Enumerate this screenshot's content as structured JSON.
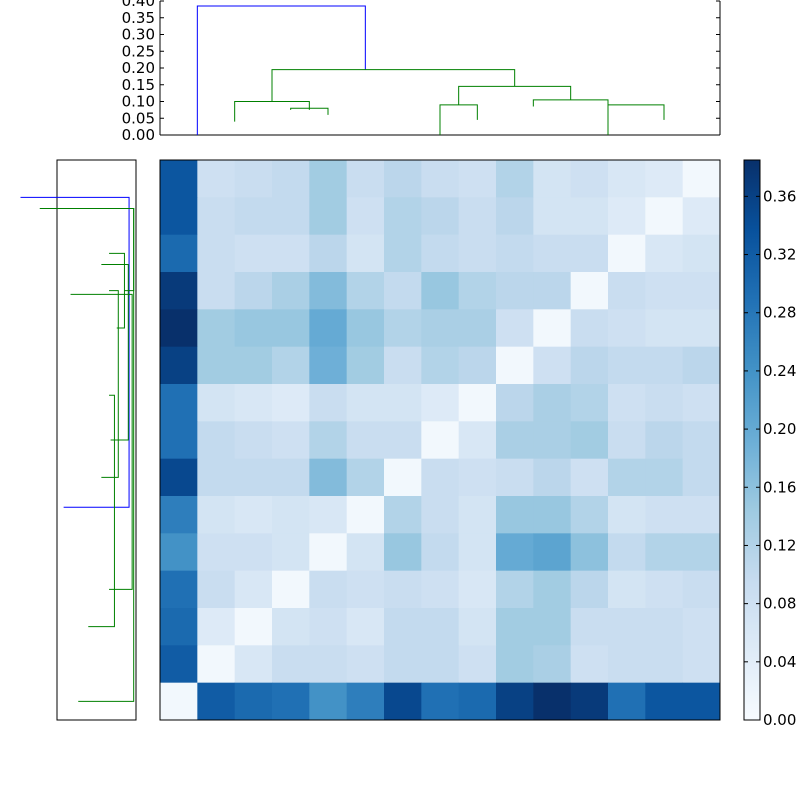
{
  "chart_data": [
    {
      "type": "dendrogram",
      "orientation": "top",
      "ylim": [
        0,
        0.4
      ],
      "yticks": [
        "0.00",
        "0.05",
        "0.10",
        "0.15",
        "0.20",
        "0.25",
        "0.30",
        "0.35",
        "0.40"
      ],
      "link_colors": {
        "root": "#0000ff",
        "cluster": "#008000"
      },
      "links": [
        {
          "x": [
            1,
            1,
            5.5,
            5.5
          ],
          "y": [
            0,
            0.385,
            0.385,
            0.195
          ],
          "color": "root"
        },
        {
          "x": [
            3,
            3,
            9.5,
            9.5
          ],
          "y": [
            0.1,
            0.195,
            0.195,
            0.145
          ],
          "color": "cluster"
        },
        {
          "x": [
            2,
            2,
            4,
            4
          ],
          "y": [
            0.04,
            0.1,
            0.1,
            0.075
          ],
          "color": "cluster"
        },
        {
          "x": [
            3.5,
            3.5,
            4.5,
            4.5
          ],
          "y": [
            0.075,
            0.08,
            0.08,
            0.06
          ],
          "color": "cluster"
        },
        {
          "x": [
            8,
            8,
            11,
            11
          ],
          "y": [
            0.09,
            0.145,
            0.145,
            0.105
          ],
          "color": "cluster"
        },
        {
          "x": [
            7.5,
            7.5,
            8.5,
            8.5
          ],
          "y": [
            0,
            0.09,
            0.09,
            0.045
          ],
          "color": "cluster"
        },
        {
          "x": [
            10,
            10,
            12,
            12
          ],
          "y": [
            0.085,
            0.105,
            0.105,
            0.09
          ],
          "color": "cluster"
        },
        {
          "x": [
            12,
            12,
            13.5,
            13.5
          ],
          "y": [
            0,
            0.09,
            0.09,
            0.045
          ],
          "color": "cluster"
        }
      ]
    },
    {
      "type": "dendrogram",
      "orientation": "left",
      "link_colors": {
        "root": "#0000ff",
        "cluster": "#008000"
      },
      "links": [
        {
          "x": [
            15,
            0.9,
            0.9,
            9.4
          ],
          "y": [
            1,
            1,
            9.3,
            9.3
          ],
          "color": "root"
        },
        {
          "x": [
            3.5,
            2.8,
            2.8,
            6.2
          ],
          "y": [
            6.3,
            6.3,
            12.5,
            12.5
          ],
          "color": "cluster"
        },
        {
          "x": [
            3.5,
            2.3,
            2.3,
            4.5
          ],
          "y": [
            3.5,
            3.5,
            8.5,
            8.5
          ],
          "color": "cluster"
        },
        {
          "x": [
            3.5,
            1.5,
            1.5,
            2.5
          ],
          "y": [
            2.5,
            2.5,
            4.5,
            4.5
          ],
          "color": "cluster"
        },
        {
          "x": [
            2.5,
            0.3,
            0.3,
            1.5
          ],
          "y": [
            1.3,
            1.3,
            3.5,
            3.5
          ],
          "color": "cluster"
        },
        {
          "x": [
            4.5,
            1.0,
            1.0,
            3.3
          ],
          "y": [
            2.8,
            2.8,
            7.5,
            7.5
          ],
          "color": "cluster"
        },
        {
          "x": [
            8.5,
            0.5,
            0.5,
            3.5
          ],
          "y": [
            3.6,
            3.6,
            11.5,
            11.5
          ],
          "color": "cluster"
        },
        {
          "x": [
            12.5,
            0.3,
            0.3,
            7.5
          ],
          "y": [
            1.3,
            1.3,
            14.5,
            14.5
          ],
          "color": "cluster"
        }
      ]
    },
    {
      "type": "heatmap",
      "rows": 15,
      "cols": 15,
      "values": [
        [
          0.33,
          0.08,
          0.09,
          0.1,
          0.14,
          0.09,
          0.11,
          0.09,
          0.08,
          0.12,
          0.07,
          0.08,
          0.06,
          0.05,
          0.01
        ],
        [
          0.33,
          0.09,
          0.1,
          0.1,
          0.14,
          0.08,
          0.12,
          0.11,
          0.09,
          0.11,
          0.07,
          0.07,
          0.05,
          0.01,
          0.05
        ],
        [
          0.3,
          0.09,
          0.08,
          0.08,
          0.11,
          0.07,
          0.12,
          0.1,
          0.09,
          0.1,
          0.09,
          0.09,
          0.01,
          0.06,
          0.07
        ],
        [
          0.37,
          0.09,
          0.11,
          0.13,
          0.17,
          0.12,
          0.1,
          0.15,
          0.12,
          0.11,
          0.11,
          0.01,
          0.09,
          0.08,
          0.08
        ],
        [
          0.39,
          0.14,
          0.15,
          0.15,
          0.2,
          0.15,
          0.12,
          0.13,
          0.13,
          0.08,
          0.01,
          0.09,
          0.08,
          0.07,
          0.07
        ],
        [
          0.36,
          0.14,
          0.14,
          0.12,
          0.19,
          0.14,
          0.09,
          0.12,
          0.11,
          0.01,
          0.08,
          0.11,
          0.1,
          0.1,
          0.11
        ],
        [
          0.29,
          0.07,
          0.06,
          0.05,
          0.09,
          0.07,
          0.07,
          0.05,
          0.01,
          0.11,
          0.13,
          0.12,
          0.08,
          0.09,
          0.08
        ],
        [
          0.29,
          0.1,
          0.09,
          0.08,
          0.12,
          0.09,
          0.09,
          0.01,
          0.06,
          0.13,
          0.13,
          0.14,
          0.09,
          0.11,
          0.1
        ],
        [
          0.35,
          0.1,
          0.1,
          0.1,
          0.17,
          0.12,
          0.01,
          0.09,
          0.08,
          0.09,
          0.11,
          0.08,
          0.12,
          0.12,
          0.1
        ],
        [
          0.27,
          0.07,
          0.06,
          0.07,
          0.06,
          0.01,
          0.12,
          0.09,
          0.07,
          0.15,
          0.15,
          0.12,
          0.07,
          0.08,
          0.08
        ],
        [
          0.24,
          0.08,
          0.08,
          0.07,
          0.01,
          0.07,
          0.15,
          0.1,
          0.07,
          0.2,
          0.21,
          0.16,
          0.1,
          0.12,
          0.12
        ],
        [
          0.29,
          0.09,
          0.06,
          0.01,
          0.09,
          0.08,
          0.09,
          0.08,
          0.06,
          0.12,
          0.14,
          0.11,
          0.07,
          0.08,
          0.09
        ],
        [
          0.3,
          0.05,
          0.01,
          0.07,
          0.08,
          0.06,
          0.1,
          0.1,
          0.07,
          0.14,
          0.14,
          0.09,
          0.09,
          0.09,
          0.08
        ],
        [
          0.32,
          0.01,
          0.06,
          0.09,
          0.09,
          0.08,
          0.1,
          0.1,
          0.08,
          0.14,
          0.13,
          0.08,
          0.09,
          0.09,
          0.08
        ],
        [
          0.01,
          0.32,
          0.3,
          0.29,
          0.24,
          0.27,
          0.35,
          0.29,
          0.3,
          0.36,
          0.39,
          0.37,
          0.29,
          0.33,
          0.33
        ]
      ],
      "colorbar": {
        "range": [
          0,
          0.385
        ],
        "ticks": [
          "0.00",
          "0.04",
          "0.08",
          "0.12",
          "0.16",
          "0.20",
          "0.24",
          "0.28",
          "0.32",
          "0.36"
        ],
        "colormap": "Blues",
        "stops": [
          "#f7fbff",
          "#deebf7",
          "#c6dbef",
          "#9ecae1",
          "#6baed6",
          "#4292c6",
          "#2171b5",
          "#08519c",
          "#08306b"
        ]
      }
    }
  ]
}
